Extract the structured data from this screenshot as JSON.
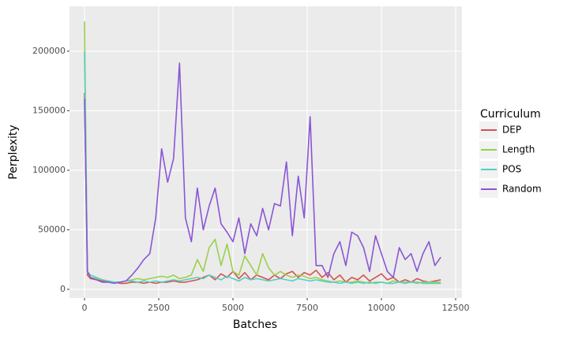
{
  "chart_data": {
    "type": "line",
    "xlabel": "Batches",
    "ylabel": "Perplexity",
    "legend_title": "Curriculum",
    "legend_position": "right",
    "grid": true,
    "x": [
      0,
      100,
      200,
      400,
      600,
      800,
      1000,
      1200,
      1400,
      1600,
      1800,
      2000,
      2200,
      2400,
      2600,
      2800,
      3000,
      3200,
      3400,
      3600,
      3800,
      4000,
      4200,
      4400,
      4600,
      4800,
      5000,
      5200,
      5400,
      5600,
      5800,
      6000,
      6200,
      6400,
      6600,
      6800,
      7000,
      7200,
      7400,
      7600,
      7800,
      8000,
      8200,
      8400,
      8600,
      8800,
      9000,
      9200,
      9400,
      9600,
      9800,
      10000,
      10200,
      10400,
      10600,
      10800,
      11000,
      11200,
      11400,
      11600,
      11800,
      12000
    ],
    "series": [
      {
        "name": "DEP",
        "color": "#d94f4f",
        "values": [
          165000,
          12000,
          9000,
          8000,
          7000,
          6000,
          6000,
          5000,
          5000,
          6000,
          6000,
          5000,
          6000,
          5000,
          6000,
          6000,
          7000,
          6000,
          6000,
          7000,
          8000,
          10000,
          12000,
          8000,
          13000,
          10000,
          15000,
          9000,
          14000,
          8000,
          12000,
          10000,
          8000,
          12000,
          9000,
          13000,
          15000,
          10000,
          14000,
          12000,
          16000,
          10000,
          14000,
          8000,
          12000,
          6000,
          10000,
          8000,
          12000,
          7000,
          10000,
          13000,
          8000,
          10000,
          6000,
          8000,
          6000,
          9000,
          7000,
          6000,
          7000,
          8000
        ]
      },
      {
        "name": "Length",
        "color": "#9ad04a",
        "values": [
          225000,
          14000,
          10000,
          9000,
          8000,
          7000,
          6000,
          6000,
          7000,
          8000,
          9000,
          8000,
          9000,
          10000,
          11000,
          10000,
          12000,
          9000,
          10000,
          12000,
          25000,
          15000,
          35000,
          42000,
          20000,
          38000,
          15000,
          12000,
          28000,
          20000,
          12000,
          30000,
          18000,
          12000,
          15000,
          12000,
          10000,
          12000,
          11000,
          9000,
          10000,
          8000,
          7000,
          6000,
          7000,
          6000,
          6000,
          7000,
          6000,
          5000,
          6000,
          6000,
          5000,
          7000,
          6000,
          6000,
          6000,
          5000,
          6000,
          6000,
          6000,
          6000
        ]
      },
      {
        "name": "POS",
        "color": "#4fd1c5",
        "values": [
          200000,
          15000,
          12000,
          10000,
          8000,
          7000,
          6000,
          6000,
          7000,
          7000,
          6000,
          7000,
          6000,
          7000,
          6000,
          7000,
          8000,
          7000,
          8000,
          9000,
          10000,
          9000,
          12000,
          10000,
          8000,
          11000,
          9000,
          7000,
          10000,
          8000,
          9000,
          8000,
          7000,
          8000,
          9000,
          8000,
          7000,
          9000,
          8000,
          7000,
          8000,
          7000,
          6000,
          6000,
          5000,
          6000,
          5000,
          6000,
          5000,
          6000,
          5000,
          6000,
          5000,
          5000,
          6000,
          5000,
          6000,
          6000,
          5000,
          5000,
          5000,
          5000
        ]
      },
      {
        "name": "Random",
        "color": "#8a55d6",
        "values": [
          160000,
          15000,
          10000,
          8000,
          6000,
          6000,
          5000,
          6000,
          7000,
          12000,
          18000,
          25000,
          30000,
          60000,
          118000,
          90000,
          110000,
          190000,
          60000,
          40000,
          85000,
          50000,
          70000,
          85000,
          55000,
          48000,
          40000,
          60000,
          30000,
          55000,
          45000,
          68000,
          50000,
          72000,
          70000,
          107000,
          45000,
          95000,
          60000,
          145000,
          20000,
          20000,
          10000,
          30000,
          40000,
          20000,
          48000,
          45000,
          35000,
          15000,
          45000,
          30000,
          15000,
          10000,
          35000,
          25000,
          30000,
          15000,
          30000,
          40000,
          20000,
          27000
        ]
      }
    ],
    "xlim": [
      -505,
      12713
    ],
    "xticks": [
      0,
      2500,
      5000,
      7500,
      10000,
      12500
    ],
    "ylim": [
      -7300,
      237700
    ],
    "yticks": [
      0,
      50000,
      100000,
      150000,
      200000
    ]
  }
}
